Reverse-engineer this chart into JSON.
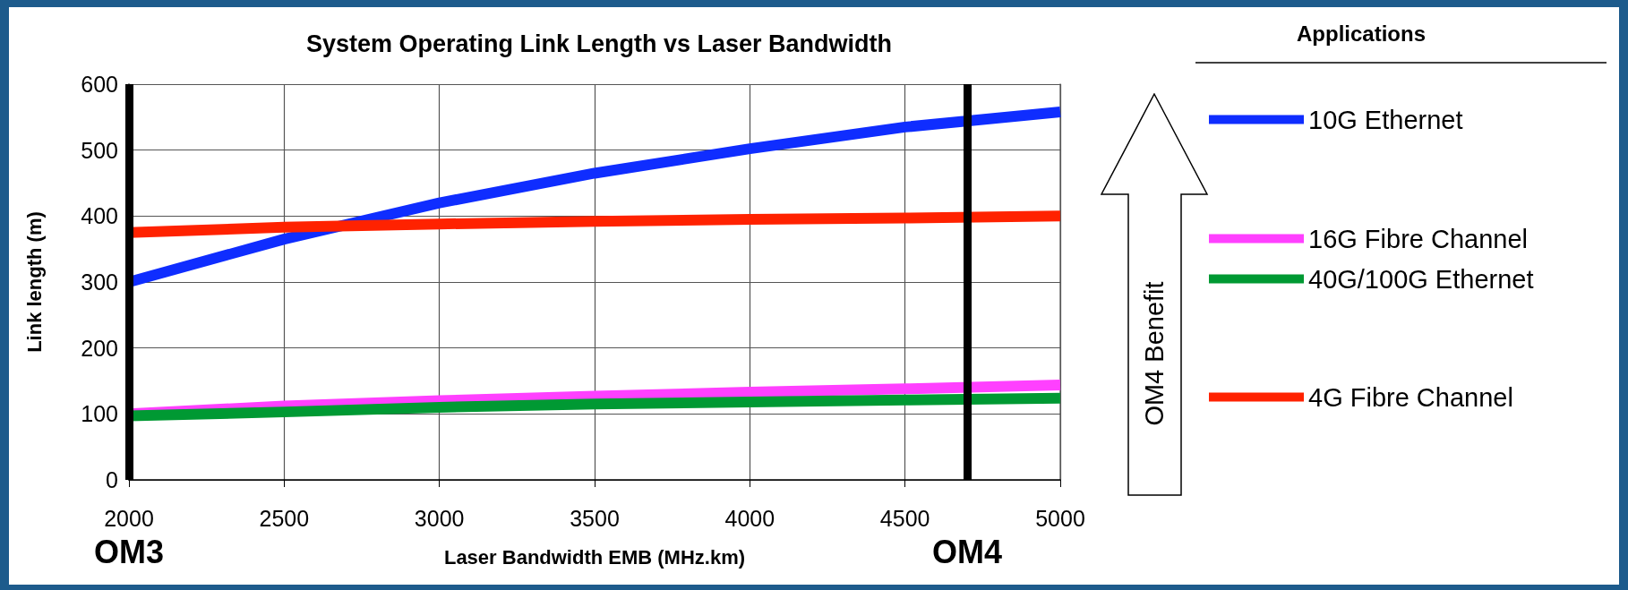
{
  "chart_data": {
    "type": "line",
    "title": "System Operating Link Length vs Laser Bandwidth",
    "xlabel": "Laser Bandwidth EMB (MHz.km)",
    "ylabel": "Link length (m)",
    "legend_title": "Applications",
    "x": [
      2000,
      2500,
      3000,
      3500,
      4000,
      4500,
      5000
    ],
    "series": [
      {
        "name": "10G Ethernet",
        "color": "#0f2dff",
        "values": [
          300,
          365,
          420,
          465,
          502,
          535,
          558
        ]
      },
      {
        "name": "16G Fibre Channel",
        "color": "#ff40ff",
        "values": [
          100,
          112,
          120,
          127,
          133,
          138,
          144
        ]
      },
      {
        "name": "40G/100G Ethernet",
        "color": "#009933",
        "values": [
          97,
          103,
          110,
          115,
          118,
          121,
          124
        ]
      },
      {
        "name": "4G Fibre Channel",
        "color": "#ff2200",
        "values": [
          375,
          383,
          388,
          392,
          395,
          397,
          400
        ]
      }
    ],
    "xlim": [
      2000,
      5000
    ],
    "xticks": [
      2000,
      2500,
      3000,
      3500,
      4000,
      4500,
      5000
    ],
    "ylim": [
      0,
      600
    ],
    "yticks": [
      0,
      100,
      200,
      300,
      400,
      500,
      600
    ],
    "ref_lines": [
      {
        "axis": "x",
        "value": 2000,
        "label": "OM3",
        "color": "#000000"
      },
      {
        "axis": "x",
        "value": 4700,
        "label": "OM4",
        "color": "#000000"
      }
    ],
    "annotations": [
      "OM4 Benefit"
    ],
    "grid": true,
    "legend": "right",
    "marker": "none",
    "line_style": "solid"
  }
}
